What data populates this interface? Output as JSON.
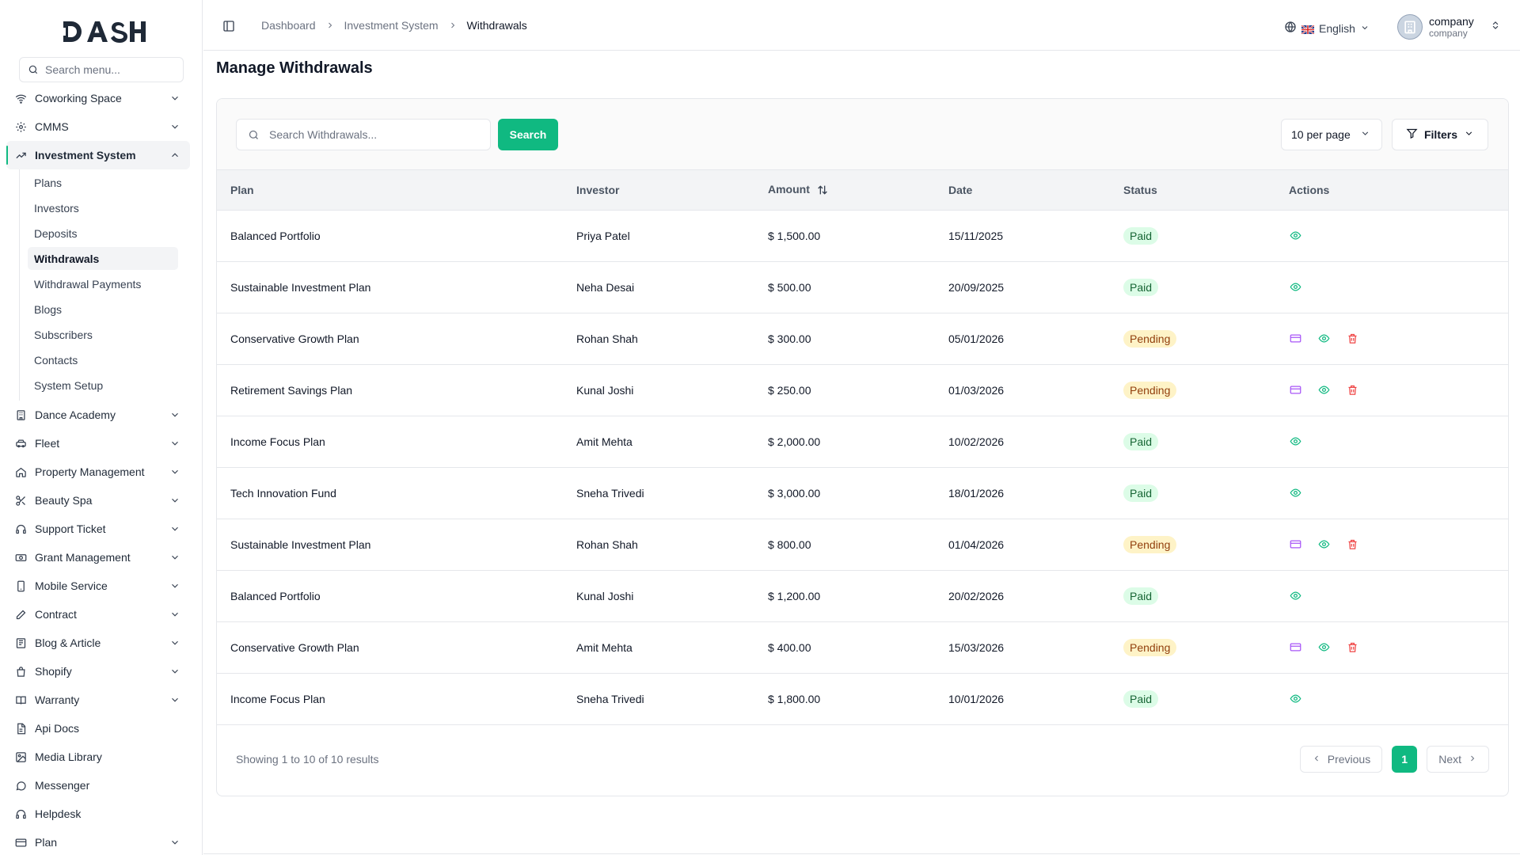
{
  "brand": {
    "logo_text": "DASH",
    "accent": "#10b981"
  },
  "sidebar": {
    "search_placeholder": "Search menu...",
    "items_top": [
      {
        "label": "Coworking Space",
        "icon": "wifi-icon"
      },
      {
        "label": "CMMS",
        "icon": "cog-icon"
      }
    ],
    "active_group": {
      "label": "Investment System",
      "icon": "trending-up-icon"
    },
    "subitems": [
      {
        "label": "Plans"
      },
      {
        "label": "Investors"
      },
      {
        "label": "Deposits"
      },
      {
        "label": "Withdrawals"
      },
      {
        "label": "Withdrawal Payments"
      },
      {
        "label": "Blogs"
      },
      {
        "label": "Subscribers"
      },
      {
        "label": "Contacts"
      },
      {
        "label": "System Setup"
      }
    ],
    "items_bottom": [
      {
        "label": "Dance Academy",
        "icon": "building-icon",
        "chevron": true
      },
      {
        "label": "Fleet",
        "icon": "car-icon",
        "chevron": true
      },
      {
        "label": "Property Management",
        "icon": "home-icon",
        "chevron": true
      },
      {
        "label": "Beauty Spa",
        "icon": "scissors-icon",
        "chevron": true
      },
      {
        "label": "Support Ticket",
        "icon": "headset-icon",
        "chevron": true
      },
      {
        "label": "Grant Management",
        "icon": "money-icon",
        "chevron": true
      },
      {
        "label": "Mobile Service",
        "icon": "phone-icon",
        "chevron": true
      },
      {
        "label": "Contract",
        "icon": "pen-icon",
        "chevron": true
      },
      {
        "label": "Blog & Article",
        "icon": "newspaper-icon",
        "chevron": true
      },
      {
        "label": "Shopify",
        "icon": "bag-icon",
        "chevron": true
      },
      {
        "label": "Warranty",
        "icon": "book-icon",
        "chevron": true
      },
      {
        "label": "Api Docs",
        "icon": "file-icon",
        "chevron": false
      },
      {
        "label": "Media Library",
        "icon": "image-icon",
        "chevron": false
      },
      {
        "label": "Messenger",
        "icon": "chat-icon",
        "chevron": false
      },
      {
        "label": "Helpdesk",
        "icon": "headset-icon",
        "chevron": false
      },
      {
        "label": "Plan",
        "icon": "card-icon",
        "chevron": true
      }
    ]
  },
  "header": {
    "breadcrumb": [
      "Dashboard",
      "Investment System",
      "Withdrawals"
    ],
    "language": "English",
    "user_name": "company",
    "user_role": "company"
  },
  "main": {
    "title": "Manage Withdrawals",
    "search_placeholder": "Search Withdrawals...",
    "search_button": "Search",
    "per_page": "10 per page",
    "filters_label": "Filters",
    "columns": [
      "Plan",
      "Investor",
      "Amount",
      "Date",
      "Status",
      "Actions"
    ],
    "rows": [
      {
        "plan": "Balanced Portfolio",
        "investor": "Priya Patel",
        "amount": "$ 1,500.00",
        "date": "15/11/2025",
        "status": "Paid"
      },
      {
        "plan": "Sustainable Investment Plan",
        "investor": "Neha Desai",
        "amount": "$ 500.00",
        "date": "20/09/2025",
        "status": "Paid"
      },
      {
        "plan": "Conservative Growth Plan",
        "investor": "Rohan Shah",
        "amount": "$ 300.00",
        "date": "05/01/2026",
        "status": "Pending"
      },
      {
        "plan": "Retirement Savings Plan",
        "investor": "Kunal Joshi",
        "amount": "$ 250.00",
        "date": "01/03/2026",
        "status": "Pending"
      },
      {
        "plan": "Income Focus Plan",
        "investor": "Amit Mehta",
        "amount": "$ 2,000.00",
        "date": "10/02/2026",
        "status": "Paid"
      },
      {
        "plan": "Tech Innovation Fund",
        "investor": "Sneha Trivedi",
        "amount": "$ 3,000.00",
        "date": "18/01/2026",
        "status": "Paid"
      },
      {
        "plan": "Sustainable Investment Plan",
        "investor": "Rohan Shah",
        "amount": "$ 800.00",
        "date": "01/04/2026",
        "status": "Pending"
      },
      {
        "plan": "Balanced Portfolio",
        "investor": "Kunal Joshi",
        "amount": "$ 1,200.00",
        "date": "20/02/2026",
        "status": "Paid"
      },
      {
        "plan": "Conservative Growth Plan",
        "investor": "Amit Mehta",
        "amount": "$ 400.00",
        "date": "15/03/2026",
        "status": "Pending"
      },
      {
        "plan": "Income Focus Plan",
        "investor": "Sneha Trivedi",
        "amount": "$ 1,800.00",
        "date": "10/01/2026",
        "status": "Paid"
      }
    ],
    "footer_text": "Showing 1 to 10 of 10 results",
    "pager": {
      "previous": "Previous",
      "current": "1",
      "next": "Next"
    }
  },
  "colors": {
    "paid_bg": "#dcfce7",
    "paid_fg": "#166534",
    "pending_bg": "#fef3c7",
    "pending_fg": "#92400e",
    "eye": "#10b981",
    "card": "#a855f7",
    "trash": "#ef4444"
  }
}
